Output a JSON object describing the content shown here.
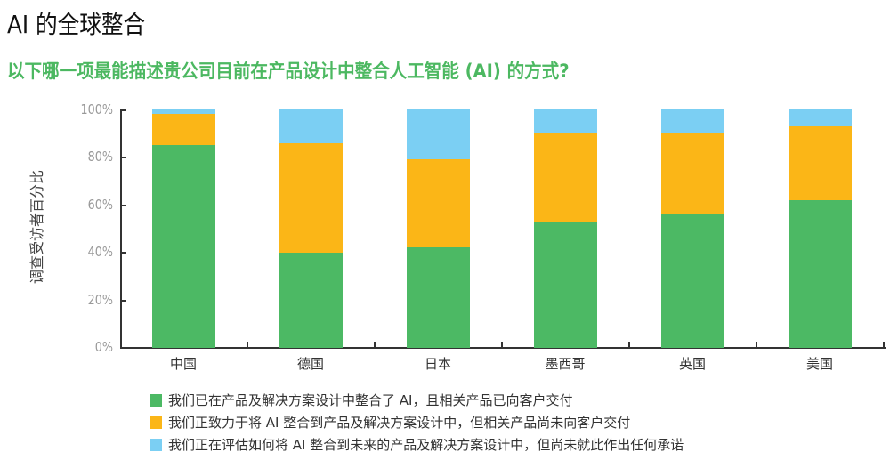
{
  "header": {
    "title": "AI 的全球整合",
    "subtitle": "以下哪一项最能描述贵公司目前在产品设计中整合人工智能 (AI) 的方式?"
  },
  "colors": {
    "integrated": "#4cb964",
    "working_on": "#fbb617",
    "evaluating": "#7bcff3",
    "subtitle": "#4cb861"
  },
  "chart_data": {
    "type": "bar",
    "stacked": true,
    "title": "AI 的全球整合",
    "subtitle": "以下哪一项最能描述贵公司目前在产品设计中整合人工智能 (AI) 的方式?",
    "xlabel": "",
    "ylabel": "调查受访者百分比",
    "ylim": [
      0,
      100
    ],
    "yticks": [
      "0%",
      "20%",
      "40%",
      "60%",
      "80%",
      "100%"
    ],
    "grid": false,
    "legend_position": "bottom",
    "categories": [
      "中国",
      "德国",
      "日本",
      "墨西哥",
      "英国",
      "美国"
    ],
    "series": [
      {
        "name": "我们已在产品及解决方案设计中整合了 AI，且相关产品已向客户交付",
        "color": "#4cb964",
        "values": [
          85,
          40,
          42,
          53,
          56,
          62
        ]
      },
      {
        "name": "我们正致力于将 AI 整合到产品及解决方案设计中，但相关产品尚未向客户交付",
        "color": "#fbb617",
        "values": [
          13,
          46,
          37,
          37,
          34,
          31
        ]
      },
      {
        "name": "我们正在评估如何将 AI 整合到未来的产品及解决方案设计中，但尚未就此作出任何承诺",
        "color": "#7bcff3",
        "values": [
          2,
          14,
          21,
          10,
          10,
          7
        ]
      }
    ]
  },
  "legend": {
    "items": [
      {
        "label": "我们已在产品及解决方案设计中整合了 AI，且相关产品已向客户交付"
      },
      {
        "label": "我们正致力于将 AI 整合到产品及解决方案设计中，但相关产品尚未向客户交付"
      },
      {
        "label": "我们正在评估如何将 AI 整合到未来的产品及解决方案设计中，但尚未就此作出任何承诺"
      }
    ]
  }
}
